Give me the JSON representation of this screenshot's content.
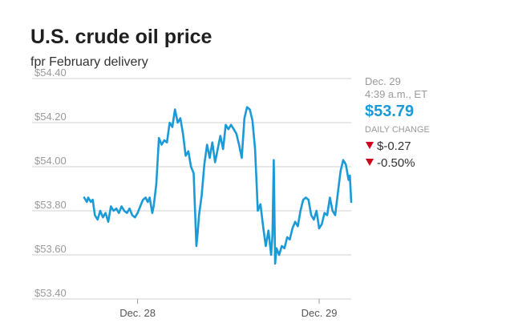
{
  "colors": {
    "line": "#1a9ad6",
    "grid": "#d0d0d0",
    "down": "#d0021b",
    "price": "#1a9ad6"
  },
  "header": {
    "title": "U.S. crude oil price",
    "subtitle": "fpr February delivery"
  },
  "sidebar": {
    "date": "Dec. 29",
    "time": "4:39 a.m., ET",
    "price": "$53.79",
    "change_label": "DAILY CHANGE",
    "change_abs": "$-0.27",
    "change_pct": "-0.50%",
    "down_icon": "down-triangle-icon"
  },
  "chart_data": {
    "type": "line",
    "title": "U.S. crude oil price",
    "subtitle": "fpr February delivery",
    "xlabel": "",
    "ylabel": "",
    "ylim": [
      53.4,
      54.4
    ],
    "y_ticks": [
      {
        "value": 53.4,
        "label": "$53.40"
      },
      {
        "value": 53.6,
        "label": "$53.60"
      },
      {
        "value": 53.8,
        "label": "$53.80"
      },
      {
        "value": 54.0,
        "label": "$54.00"
      },
      {
        "value": 54.2,
        "label": "$54.20"
      },
      {
        "value": 54.4,
        "label": "$54.40"
      }
    ],
    "x_domain": [
      0,
      100
    ],
    "x_ticks": [
      {
        "value": 20,
        "label": "Dec. 28"
      },
      {
        "value": 88,
        "label": "Dec. 29"
      }
    ],
    "grid": true,
    "series": [
      {
        "name": "",
        "points": [
          [
            0,
            53.86
          ],
          [
            1,
            53.84
          ],
          [
            1.5,
            53.86
          ],
          [
            2.5,
            53.84
          ],
          [
            3.2,
            53.85
          ],
          [
            4,
            53.78
          ],
          [
            5,
            53.76
          ],
          [
            6,
            53.8
          ],
          [
            7,
            53.77
          ],
          [
            8,
            53.79
          ],
          [
            9,
            53.75
          ],
          [
            10,
            53.82
          ],
          [
            11,
            53.8
          ],
          [
            12,
            53.81
          ],
          [
            13,
            53.79
          ],
          [
            14,
            53.82
          ],
          [
            15,
            53.8
          ],
          [
            16,
            53.79
          ],
          [
            17,
            53.81
          ],
          [
            18,
            53.78
          ],
          [
            19,
            53.77
          ],
          [
            20,
            53.79
          ],
          [
            21,
            53.82
          ],
          [
            22,
            53.85
          ],
          [
            23,
            53.86
          ],
          [
            23.8,
            53.84
          ],
          [
            24.5,
            53.86
          ],
          [
            25.5,
            53.79
          ],
          [
            26,
            53.82
          ],
          [
            27,
            53.92
          ],
          [
            28,
            54.13
          ],
          [
            29,
            54.1
          ],
          [
            30,
            54.12
          ],
          [
            31,
            54.11
          ],
          [
            32,
            54.2
          ],
          [
            33,
            54.18
          ],
          [
            34,
            54.26
          ],
          [
            35,
            54.2
          ],
          [
            36,
            54.22
          ],
          [
            37,
            54.15
          ],
          [
            38,
            54.05
          ],
          [
            39,
            54.07
          ],
          [
            40,
            54.0
          ],
          [
            41,
            53.97
          ],
          [
            42,
            53.64
          ],
          [
            42.5,
            53.7
          ],
          [
            43,
            53.78
          ],
          [
            44,
            53.87
          ],
          [
            45,
            54.01
          ],
          [
            46,
            54.1
          ],
          [
            47,
            54.04
          ],
          [
            48,
            54.11
          ],
          [
            49,
            54.02
          ],
          [
            50,
            54.08
          ],
          [
            51,
            54.14
          ],
          [
            52,
            54.08
          ],
          [
            53,
            54.19
          ],
          [
            54,
            54.17
          ],
          [
            55,
            54.19
          ],
          [
            56,
            54.17
          ],
          [
            57,
            54.15
          ],
          [
            58,
            54.1
          ],
          [
            59,
            54.04
          ],
          [
            60,
            54.22
          ],
          [
            61,
            54.27
          ],
          [
            62,
            54.26
          ],
          [
            63,
            54.21
          ],
          [
            64,
            54.08
          ],
          [
            65,
            53.8
          ],
          [
            66,
            53.83
          ],
          [
            67,
            53.73
          ],
          [
            68,
            53.64
          ],
          [
            69,
            53.71
          ],
          [
            70,
            53.6
          ],
          [
            70.5,
            53.69
          ],
          [
            71,
            54.03
          ],
          [
            71.5,
            53.56
          ],
          [
            72,
            53.63
          ],
          [
            73,
            53.6
          ],
          [
            74,
            53.64
          ],
          [
            75,
            53.63
          ],
          [
            76,
            53.68
          ],
          [
            77,
            53.67
          ],
          [
            78,
            53.72
          ],
          [
            79,
            53.75
          ],
          [
            80,
            53.73
          ],
          [
            81,
            53.8
          ],
          [
            82,
            53.85
          ],
          [
            83,
            53.86
          ],
          [
            84,
            53.85
          ],
          [
            85,
            53.78
          ],
          [
            86,
            53.76
          ],
          [
            87,
            53.8
          ],
          [
            88,
            53.72
          ],
          [
            89,
            53.74
          ],
          [
            90,
            53.79
          ],
          [
            91,
            53.78
          ],
          [
            92,
            53.86
          ],
          [
            93,
            53.8
          ],
          [
            94,
            53.78
          ],
          [
            95,
            53.88
          ],
          [
            96,
            53.98
          ],
          [
            97,
            54.03
          ],
          [
            98,
            54.01
          ],
          [
            99,
            53.94
          ],
          [
            99.5,
            53.96
          ],
          [
            100,
            53.84
          ]
        ]
      }
    ]
  }
}
